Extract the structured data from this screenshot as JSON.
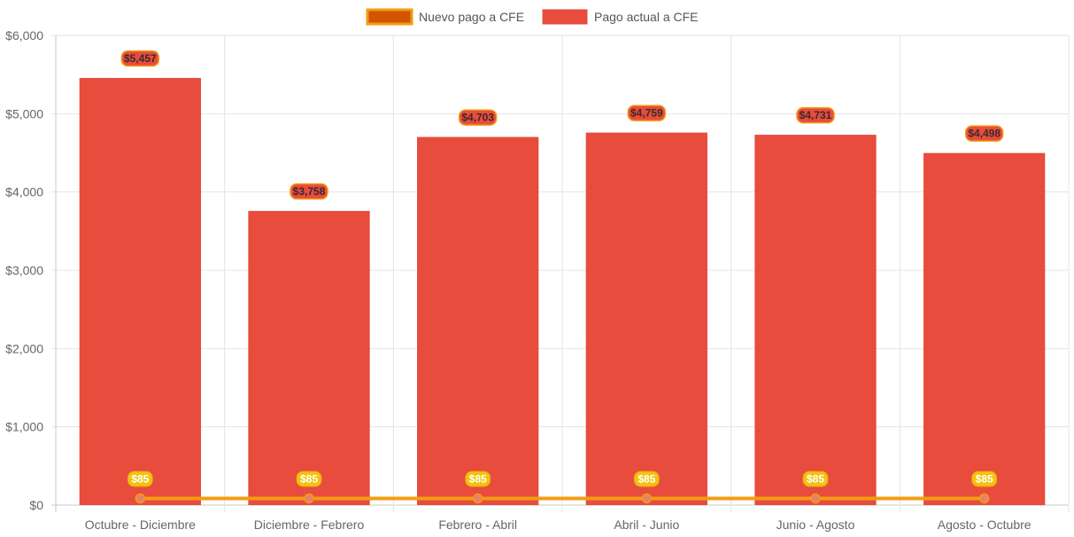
{
  "chart_data": {
    "type": "bar",
    "categories": [
      "Octubre - Diciembre",
      "Diciembre - Febrero",
      "Febrero - Abril",
      "Abril - Junio",
      "Junio - Agosto",
      "Agosto - Octubre"
    ],
    "series": [
      {
        "name": "Nuevo pago a CFE",
        "type": "line",
        "values": [
          85,
          85,
          85,
          85,
          85,
          85
        ],
        "labels": [
          "$85",
          "$85",
          "$85",
          "$85",
          "$85",
          "$85"
        ],
        "color": "#f39c12",
        "legend_fill": "#d35400"
      },
      {
        "name": "Pago actual a CFE",
        "type": "bar",
        "values": [
          5457,
          3758,
          4703,
          4759,
          4731,
          4498
        ],
        "labels": [
          "$5,457",
          "$3,758",
          "$4,703",
          "$4,759",
          "$4,731",
          "$4,498"
        ],
        "color": "#e74c3c"
      }
    ],
    "ylim": [
      0,
      6000
    ],
    "yticks": [
      "$0",
      "$1,000",
      "$2,000",
      "$3,000",
      "$4,000",
      "$5,000",
      "$6,000"
    ],
    "ytick_values": [
      0,
      1000,
      2000,
      3000,
      4000,
      5000,
      6000
    ],
    "grid": true,
    "legend_position": "top-center"
  }
}
